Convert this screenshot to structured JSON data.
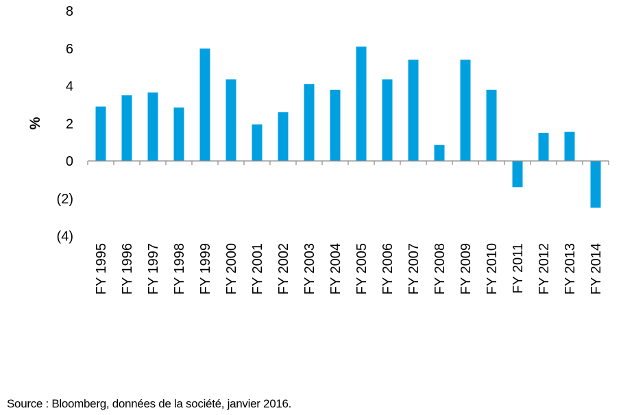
{
  "chart_data": {
    "type": "bar",
    "categories": [
      "FY 1995",
      "FY 1996",
      "FY 1997",
      "FY 1998",
      "FY 1999",
      "FY 2000",
      "FY 2001",
      "FY 2002",
      "FY 2003",
      "FY 2004",
      "FY 2005",
      "FY 2006",
      "FY 2007",
      "FY 2008",
      "FY 2009",
      "FY 2010",
      "FY 2011",
      "FY 2012",
      "FY 2013",
      "FY 2014"
    ],
    "values": [
      2.9,
      3.5,
      3.65,
      2.85,
      6.0,
      4.35,
      1.95,
      2.6,
      4.1,
      3.8,
      6.1,
      4.35,
      5.4,
      0.85,
      5.4,
      3.8,
      -1.4,
      1.5,
      1.55,
      -2.5
    ],
    "ylim": [
      -4,
      8
    ],
    "yticks": [
      8,
      6,
      4,
      2,
      0,
      -2,
      -4
    ],
    "ytick_labels": [
      "8",
      "6",
      "4",
      "2",
      "0",
      "(2)",
      "(4)"
    ],
    "ylabel": "%",
    "xlabel": "",
    "title": "",
    "grid": false,
    "bar_color": "#00a0e0"
  },
  "footer": {
    "source": "Source : Bloomberg, données de la société, janvier 2016."
  }
}
